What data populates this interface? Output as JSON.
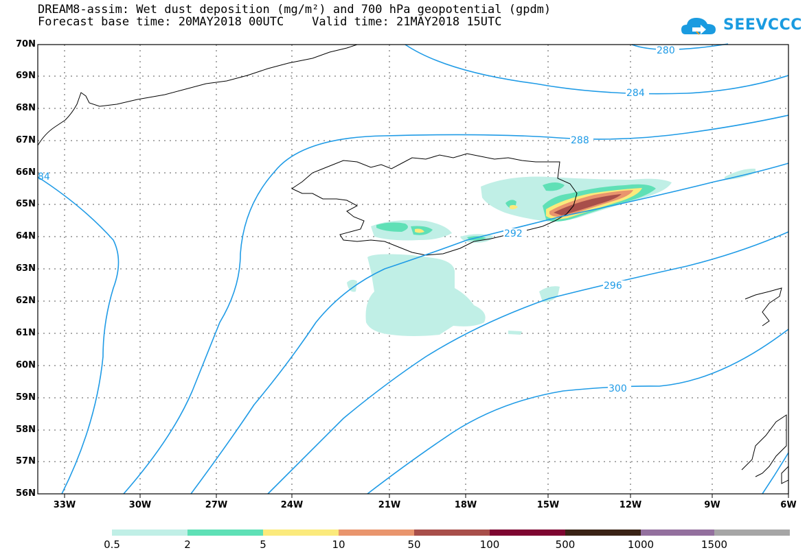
{
  "title": {
    "line1": "DREAM8-assim: Wet dust deposition (mg/m²) and 700 hPa geopotential (gpdm)",
    "line2": "Forecast base time: 20MAY2018 00UTC    Valid time: 21MAY2018 15UTC"
  },
  "logo": {
    "text": "SEEVCCC",
    "icon": "cloud-icon",
    "color": "#1a9be0"
  },
  "map": {
    "lat_labels": [
      "70N",
      "69N",
      "68N",
      "67N",
      "66N",
      "65N",
      "64N",
      "63N",
      "62N",
      "61N",
      "60N",
      "59N",
      "58N",
      "57N",
      "56N"
    ],
    "lon_labels": [
      "33W",
      "30W",
      "27W",
      "24W",
      "21W",
      "18W",
      "15W",
      "12W",
      "9W",
      "6W"
    ],
    "contour_labels": [
      "280",
      "284",
      "288",
      "292",
      "296",
      "300",
      "84"
    ],
    "contour_color": "#1f9be6",
    "grid": "dotted"
  },
  "colorbar": {
    "labels": [
      "0.5",
      "2",
      "5",
      "10",
      "50",
      "100",
      "500",
      "1000",
      "1500"
    ],
    "colors": [
      "#c0efe6",
      "#5fe0b6",
      "#fbea7c",
      "#e9956d",
      "#a84f4a",
      "#7e0631",
      "#3a2316",
      "#93709e",
      "#a6a6a6"
    ]
  }
}
